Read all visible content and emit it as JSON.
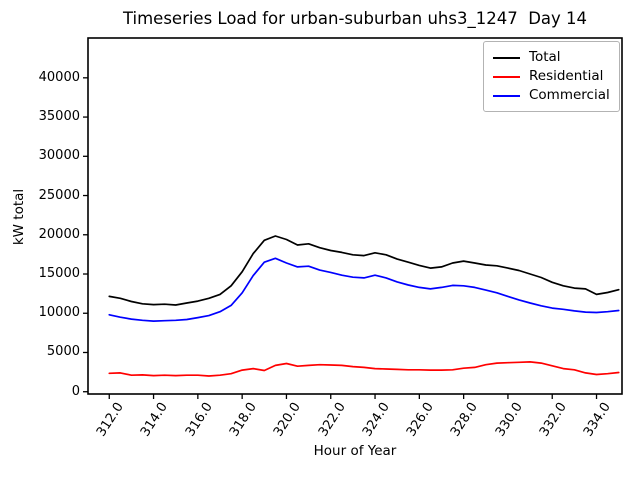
{
  "chart_data": {
    "type": "line",
    "title": "Timeseries Load for urban-suburban uhs3_1247  Day 14",
    "xlabel": "Hour of Year",
    "ylabel": "kW total",
    "xlim": [
      311.04,
      335.15
    ],
    "ylim": [
      -290,
      45075
    ],
    "grid": false,
    "legend_position": "upper right",
    "x_tick_labels": [
      "312.0",
      "314.0",
      "316.0",
      "318.0",
      "320.0",
      "322.0",
      "324.0",
      "326.0",
      "328.0",
      "330.0",
      "332.0",
      "334.0"
    ],
    "y_tick_labels": [
      "0",
      "5000",
      "10000",
      "15000",
      "20000",
      "25000",
      "30000",
      "35000",
      "40000"
    ],
    "x": [
      312,
      312.5,
      313,
      313.5,
      314,
      314.5,
      315,
      315.5,
      316,
      316.5,
      317,
      317.5,
      318,
      318.5,
      319,
      319.5,
      320,
      320.5,
      321,
      321.5,
      322,
      322.5,
      323,
      323.5,
      324,
      324.5,
      325,
      325.5,
      326,
      326.5,
      327,
      327.5,
      328,
      328.5,
      329,
      329.5,
      330,
      330.5,
      331,
      331.5,
      332,
      332.5,
      333,
      333.5,
      334,
      334.5,
      335
    ],
    "series": [
      {
        "name": "Total",
        "color": "#000000",
        "values": [
          12150,
          11900,
          11500,
          11200,
          11100,
          11150,
          11050,
          11300,
          11550,
          11900,
          12400,
          13500,
          15300,
          17600,
          19300,
          19850,
          19400,
          18700,
          18850,
          18350,
          18000,
          17750,
          17450,
          17350,
          17700,
          17450,
          16900,
          16500,
          16100,
          15750,
          15900,
          16400,
          16650,
          16400,
          16150,
          16050,
          15750,
          15450,
          15000,
          14550,
          13950,
          13500,
          13200,
          13100,
          12400,
          12650,
          13000
        ]
      },
      {
        "name": "Residential",
        "color": "#ff0000",
        "values": [
          2350,
          2400,
          2100,
          2150,
          2050,
          2100,
          2050,
          2100,
          2100,
          2000,
          2100,
          2300,
          2750,
          2950,
          2700,
          3350,
          3600,
          3250,
          3350,
          3450,
          3400,
          3350,
          3200,
          3100,
          2950,
          2900,
          2850,
          2800,
          2800,
          2750,
          2750,
          2800,
          3000,
          3100,
          3450,
          3650,
          3700,
          3750,
          3800,
          3650,
          3300,
          2950,
          2800,
          2400,
          2200,
          2300,
          2450
        ]
      },
      {
        "name": "Commercial",
        "color": "#0000ff",
        "values": [
          9800,
          9500,
          9250,
          9100,
          9000,
          9050,
          9100,
          9200,
          9450,
          9700,
          10200,
          11000,
          12600,
          14800,
          16500,
          17000,
          16400,
          15900,
          16000,
          15500,
          15200,
          14850,
          14600,
          14500,
          14850,
          14500,
          14000,
          13600,
          13300,
          13100,
          13300,
          13550,
          13500,
          13300,
          12950,
          12600,
          12150,
          11700,
          11300,
          10950,
          10650,
          10500,
          10300,
          10150,
          10100,
          10200,
          10350
        ]
      }
    ]
  }
}
